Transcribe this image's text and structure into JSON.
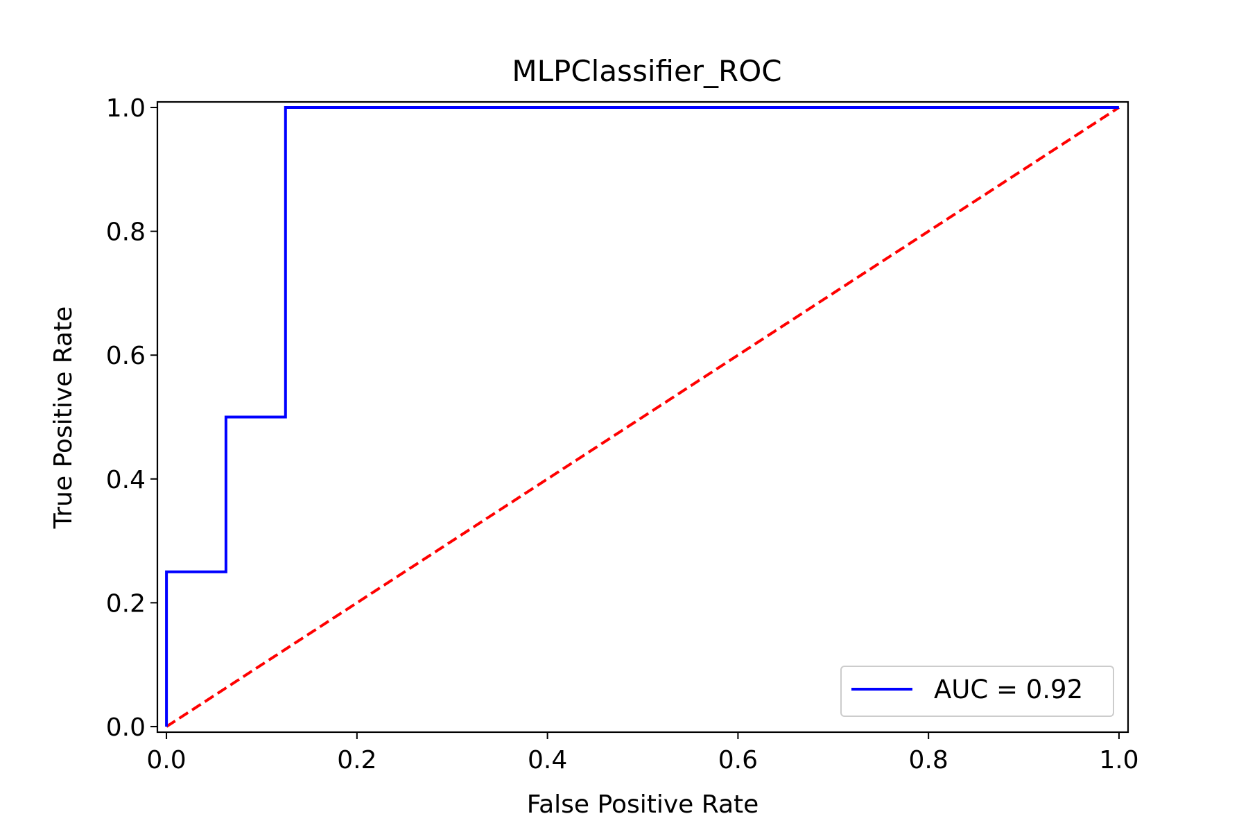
{
  "chart_data": {
    "type": "line",
    "title": "MLPClassifier_ROC",
    "xlabel": "False Positive Rate",
    "ylabel": "True Positive Rate",
    "xlim": [
      -0.0095,
      1.0095
    ],
    "ylim": [
      -0.009,
      1.009
    ],
    "xticks": [
      0.0,
      0.2,
      0.4,
      0.6,
      0.8,
      1.0
    ],
    "yticks": [
      0.0,
      0.2,
      0.4,
      0.6,
      0.8,
      1.0
    ],
    "xtick_labels": [
      "0.0",
      "0.2",
      "0.4",
      "0.6",
      "0.8",
      "1.0"
    ],
    "ytick_labels": [
      "0.0",
      "0.2",
      "0.4",
      "0.6",
      "0.8",
      "1.0"
    ],
    "grid": false,
    "legend_position": "lower-right",
    "series": [
      {
        "name": "AUC = 0.92",
        "color": "#0000ff",
        "style": "solid",
        "x": [
          0.0,
          0.0,
          0.0625,
          0.0625,
          0.125,
          0.125,
          1.0
        ],
        "y": [
          0.0,
          0.25,
          0.25,
          0.5,
          0.5,
          1.0,
          1.0
        ]
      },
      {
        "color": "#ff0000",
        "style": "dashed",
        "x": [
          0.0,
          1.0
        ],
        "y": [
          0.0,
          1.0
        ]
      }
    ]
  }
}
